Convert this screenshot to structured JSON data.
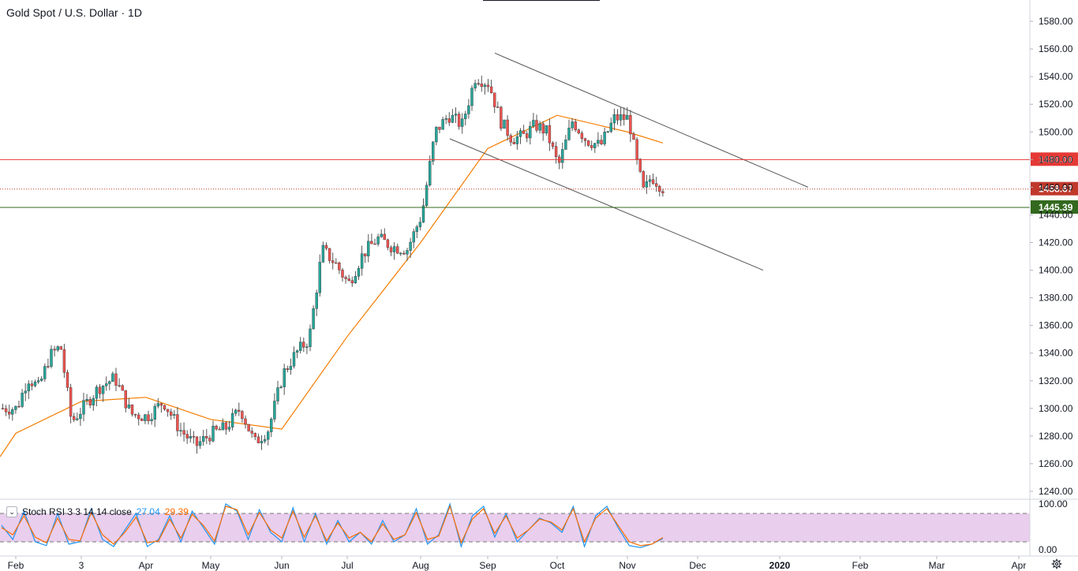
{
  "header": {
    "title": "Gold Spot / U.S. Dollar · 1D"
  },
  "indicator": {
    "name": "Stoch RSI 3 3 14 14 close",
    "k_value": "27.04",
    "d_value": "29.39",
    "toggle_icon": "chevron-down-icon"
  },
  "settings_icon": "gear-icon",
  "colors": {
    "up": "#26a69a",
    "down": "#ef5350",
    "ma": "#f57c00",
    "resistance": "#e53935",
    "support": "#33691e",
    "current": "#c0392b",
    "channel": "#555555",
    "stoch_k": "#2196f3",
    "stoch_d": "#ff6d00",
    "stoch_band": "#e1bee7"
  },
  "chart_data": [
    {
      "type": "candlestick",
      "title": "Gold Spot / U.S. Dollar · 1D",
      "y_ticks": [
        1580,
        1560,
        1540,
        1520,
        1500,
        1480,
        1460,
        1440,
        1420,
        1400,
        1380,
        1360,
        1340,
        1320,
        1300,
        1280,
        1260,
        1240
      ],
      "y_tick_labels": [
        "1580.00",
        "1560.00",
        "1540.00",
        "1520.00",
        "1500.00",
        "1480.00",
        "1460.00",
        "1440.00",
        "1420.00",
        "1400.00",
        "1380.00",
        "1360.00",
        "1340.00",
        "1320.00",
        "1300.00",
        "1280.00",
        "1260.00",
        "1240.00"
      ],
      "ylim": [
        1236,
        1592
      ],
      "x_labels": [
        "Feb",
        "3",
        "Apr",
        "May",
        "Jun",
        "Jul",
        "Aug",
        "Sep",
        "Oct",
        "Nov",
        "Dec",
        "2020",
        "Feb",
        "Mar",
        "Apr"
      ],
      "x_label_bold": [
        "2020"
      ],
      "anchors": [
        {
          "label": "Feb",
          "price": 1300
        },
        {
          "label": "",
          "price": 1322
        },
        {
          "label": "",
          "price": 1315
        },
        {
          "label": "",
          "price": 1338
        },
        {
          "label": "",
          "price": 1345
        },
        {
          "label": "",
          "price": 1290
        },
        {
          "label": "3",
          "price": 1300
        },
        {
          "label": "",
          "price": 1315
        },
        {
          "label": "",
          "price": 1322
        },
        {
          "label": "",
          "price": 1296
        },
        {
          "label": "Apr",
          "price": 1294
        },
        {
          "label": "",
          "price": 1305
        },
        {
          "label": "",
          "price": 1285
        },
        {
          "label": "",
          "price": 1273
        },
        {
          "label": "May",
          "price": 1282
        },
        {
          "label": "",
          "price": 1286
        },
        {
          "label": "",
          "price": 1300
        },
        {
          "label": "",
          "price": 1275
        },
        {
          "label": "",
          "price": 1285
        },
        {
          "label": "Jun",
          "price": 1325
        },
        {
          "label": "",
          "price": 1340
        },
        {
          "label": "",
          "price": 1350
        },
        {
          "label": "",
          "price": 1415
        },
        {
          "label": "",
          "price": 1405
        },
        {
          "label": "Jul",
          "price": 1390
        },
        {
          "label": "",
          "price": 1412
        },
        {
          "label": "",
          "price": 1423
        },
        {
          "label": "",
          "price": 1417
        },
        {
          "label": "",
          "price": 1415
        },
        {
          "label": "Aug",
          "price": 1440
        },
        {
          "label": "",
          "price": 1500
        },
        {
          "label": "",
          "price": 1512
        },
        {
          "label": "",
          "price": 1505
        },
        {
          "label": "",
          "price": 1540
        },
        {
          "label": "Sep",
          "price": 1535
        },
        {
          "label": "",
          "price": 1508
        },
        {
          "label": "",
          "price": 1495
        },
        {
          "label": "",
          "price": 1497
        },
        {
          "label": "",
          "price": 1505
        },
        {
          "label": "",
          "price": 1500
        },
        {
          "label": "Oct",
          "price": 1475
        },
        {
          "label": "",
          "price": 1508
        },
        {
          "label": "",
          "price": 1494
        },
        {
          "label": "",
          "price": 1490
        },
        {
          "label": "",
          "price": 1510
        },
        {
          "label": "Nov",
          "price": 1510
        },
        {
          "label": "",
          "price": 1480
        },
        {
          "label": "",
          "price": 1456
        },
        {
          "label": "",
          "price": 1468
        },
        {
          "label": "",
          "price": 1458.67
        }
      ],
      "moving_average": [
        {
          "label": "Feb",
          "price": 1282
        },
        {
          "label": "3",
          "price": 1305
        },
        {
          "label": "Apr",
          "price": 1308
        },
        {
          "label": "May",
          "price": 1292
        },
        {
          "label": "Jun",
          "price": 1285
        },
        {
          "label": "Jul",
          "price": 1352
        },
        {
          "label": "Aug",
          "price": 1420
        },
        {
          "label": "Sep",
          "price": 1488
        },
        {
          "label": "Oct",
          "price": 1512
        },
        {
          "label": "Nov",
          "price": 1500
        }
      ],
      "channel_upper": [
        {
          "label": "Sep",
          "price": 1557
        },
        {
          "label": "Dec",
          "price": 1460
        }
      ],
      "channel_lower": [
        {
          "label": "Aug",
          "price": 1495
        },
        {
          "label": "Dec",
          "price": 1400
        }
      ],
      "horizontal_levels": [
        {
          "name": "resistance",
          "price": 1480.0,
          "label": "1480.00",
          "style": "solid"
        },
        {
          "name": "current",
          "price": 1458.67,
          "label": "1458.67",
          "style": "dotted"
        },
        {
          "name": "support",
          "price": 1445.39,
          "label": "1445.39",
          "style": "solid"
        }
      ]
    },
    {
      "type": "line",
      "title": "Stoch RSI 3 3 14 14 close",
      "ylim": [
        0,
        100
      ],
      "y_tick_labels": [
        "100.00",
        "0.00"
      ],
      "band": [
        20,
        80
      ],
      "series": [
        {
          "name": "K",
          "value": 27.04,
          "points": [
            55,
            25,
            85,
            20,
            12,
            80,
            15,
            20,
            90,
            25,
            10,
            45,
            80,
            10,
            25,
            75,
            20,
            85,
            50,
            15,
            100,
            85,
            25,
            88,
            40,
            20,
            92,
            20,
            80,
            15,
            65,
            20,
            40,
            15,
            65,
            20,
            35,
            90,
            15,
            35,
            100,
            10,
            75,
            95,
            30,
            80,
            20,
            45,
            70,
            60,
            40,
            95,
            10,
            75,
            95,
            50,
            12,
            8,
            15,
            27
          ]
        },
        {
          "name": "D",
          "value": 29.39,
          "points": [
            50,
            35,
            75,
            30,
            18,
            70,
            25,
            22,
            82,
            35,
            15,
            40,
            72,
            18,
            22,
            68,
            28,
            78,
            55,
            22,
            95,
            88,
            35,
            82,
            45,
            28,
            85,
            30,
            75,
            22,
            60,
            28,
            40,
            20,
            58,
            25,
            35,
            82,
            25,
            32,
            95,
            18,
            68,
            90,
            38,
            75,
            28,
            45,
            68,
            62,
            45,
            90,
            20,
            70,
            90,
            55,
            20,
            12,
            15,
            29
          ]
        }
      ],
      "gridlines": "dashed at 20 and 80"
    }
  ]
}
